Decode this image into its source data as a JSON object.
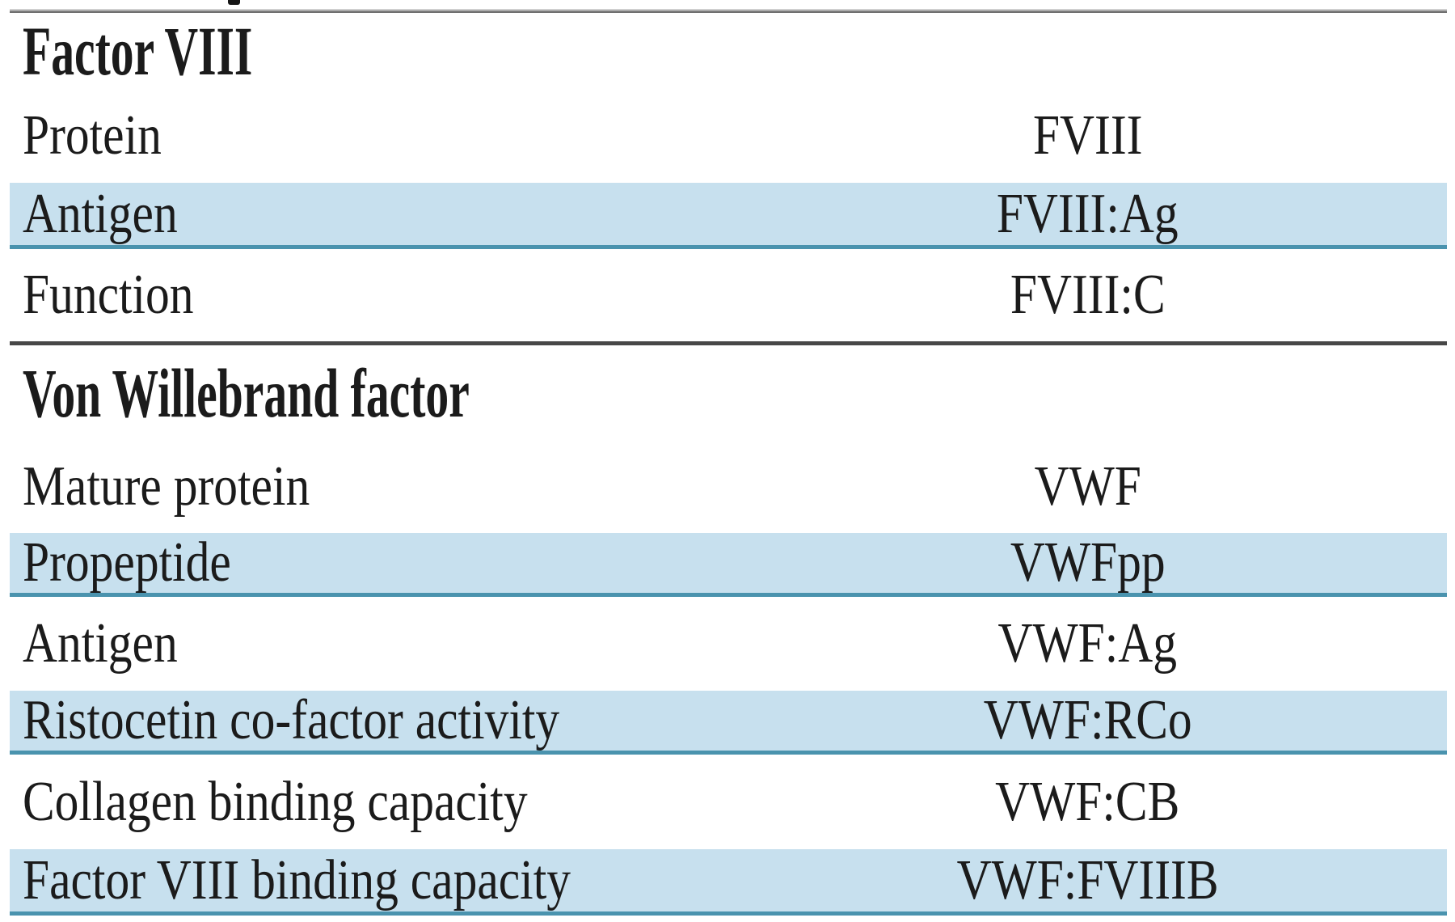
{
  "colors": {
    "row_highlight": "#c7e0ee",
    "row_divider_teal": "#4a93ae",
    "rule_top_gray": "#9c9c9c",
    "rule_section_gray": "#474747",
    "text": "#1b1b1b"
  },
  "table": {
    "sections": [
      {
        "heading": "Factor VIII",
        "rows": [
          {
            "label": "Protein",
            "value": "FVIII",
            "highlighted": false
          },
          {
            "label": "Antigen",
            "value": "FVIII:Ag",
            "highlighted": true
          },
          {
            "label": "Function",
            "value": "FVIII:C",
            "highlighted": false
          }
        ]
      },
      {
        "heading": "Von Willebrand factor",
        "rows": [
          {
            "label": "Mature protein",
            "value": "VWF",
            "highlighted": false
          },
          {
            "label": "Propeptide",
            "value": "VWFpp",
            "highlighted": true
          },
          {
            "label": "Antigen",
            "value": "VWF:Ag",
            "highlighted": false
          },
          {
            "label": "Ristocetin co-factor activity",
            "value": "VWF:RCo",
            "highlighted": true
          },
          {
            "label": "Collagen binding capacity",
            "value": "VWF:CB",
            "highlighted": false
          },
          {
            "label": "Factor VIII binding capacity",
            "value": "VWF:FVIIIB",
            "highlighted": true
          }
        ]
      }
    ]
  }
}
